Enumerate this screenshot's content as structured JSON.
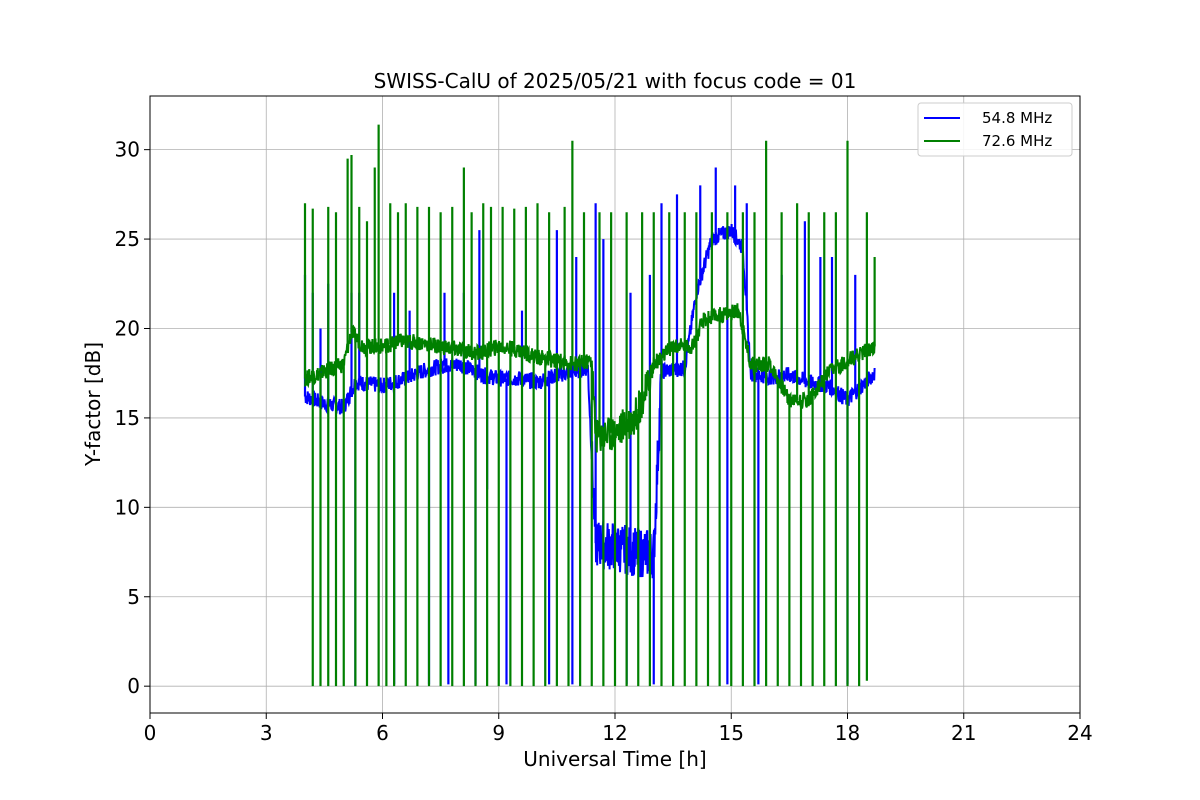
{
  "chart_data": {
    "type": "line",
    "title": "SWISS-CalU of 2025/05/21 with focus code = 01",
    "xlabel": "Universal Time [h]",
    "ylabel": "Y-factor [dB]",
    "xlim": [
      0,
      24
    ],
    "ylim": [
      -1.5,
      33
    ],
    "xticks": [
      0,
      3,
      6,
      9,
      12,
      15,
      18,
      21,
      24
    ],
    "yticks": [
      0,
      5,
      10,
      15,
      20,
      25,
      30
    ],
    "grid": true,
    "legend_position": "top-right",
    "colors": {
      "series_1": "#0000ff",
      "series_2": "#008000"
    },
    "series": [
      {
        "name": "54.8 MHz",
        "color": "#0000ff",
        "baseline": [
          [
            4.0,
            16.2
          ],
          [
            4.5,
            15.8
          ],
          [
            5.0,
            15.6
          ],
          [
            5.3,
            17.0
          ],
          [
            6.0,
            16.8
          ],
          [
            6.6,
            17.2
          ],
          [
            7.0,
            17.6
          ],
          [
            7.5,
            17.9
          ],
          [
            8.0,
            18.0
          ],
          [
            8.6,
            17.4
          ],
          [
            9.0,
            17.2
          ],
          [
            9.5,
            17.2
          ],
          [
            10.0,
            17.0
          ],
          [
            10.5,
            17.4
          ],
          [
            11.0,
            17.6
          ],
          [
            11.3,
            17.8
          ],
          [
            11.5,
            8.0
          ],
          [
            12.0,
            7.8
          ],
          [
            12.5,
            7.5
          ],
          [
            13.0,
            7.4
          ],
          [
            13.2,
            17.6
          ],
          [
            13.8,
            17.8
          ],
          [
            14.1,
            22.0
          ],
          [
            14.5,
            25.0
          ],
          [
            15.0,
            25.5
          ],
          [
            15.3,
            24.5
          ],
          [
            15.5,
            17.5
          ],
          [
            16.0,
            17.3
          ],
          [
            16.5,
            17.4
          ],
          [
            17.0,
            17.0
          ],
          [
            17.5,
            16.8
          ],
          [
            18.0,
            16.0
          ],
          [
            18.7,
            17.5
          ]
        ],
        "spike_peaks": [
          [
            4.0,
            23.0
          ],
          [
            4.2,
            22.0
          ],
          [
            4.4,
            20.0
          ],
          [
            4.6,
            22.5
          ],
          [
            5.2,
            22.0
          ],
          [
            5.4,
            22.0
          ],
          [
            6.3,
            22.0
          ],
          [
            6.7,
            21.0
          ],
          [
            7.6,
            22.0
          ],
          [
            8.1,
            22.0
          ],
          [
            8.5,
            25.5
          ],
          [
            9.6,
            21.0
          ],
          [
            10.5,
            25.5
          ],
          [
            11.0,
            24.0
          ],
          [
            11.5,
            27.0
          ],
          [
            11.7,
            25.0
          ],
          [
            12.4,
            22.0
          ],
          [
            12.9,
            23.0
          ],
          [
            13.2,
            27.0
          ],
          [
            13.6,
            27.5
          ],
          [
            14.2,
            28.0
          ],
          [
            14.6,
            29.0
          ],
          [
            15.1,
            28.0
          ],
          [
            15.4,
            27.0
          ],
          [
            16.3,
            23.0
          ],
          [
            16.9,
            26.0
          ],
          [
            17.3,
            24.0
          ],
          [
            17.6,
            24.0
          ],
          [
            18.2,
            23.0
          ]
        ],
        "dips": [
          [
            5.3,
            0.0
          ],
          [
            6.3,
            0.1
          ],
          [
            7.2,
            0.1
          ],
          [
            7.7,
            0.1
          ],
          [
            8.4,
            0.1
          ],
          [
            8.7,
            11.0
          ],
          [
            9.2,
            0.1
          ],
          [
            10.3,
            0.1
          ],
          [
            10.9,
            0.1
          ],
          [
            12.3,
            0.1
          ],
          [
            13.0,
            0.1
          ],
          [
            14.9,
            0.1
          ],
          [
            15.7,
            0.1
          ],
          [
            18.0,
            0.1
          ]
        ]
      },
      {
        "name": "72.6 MHz",
        "color": "#008000",
        "baseline": [
          [
            4.0,
            17.2
          ],
          [
            4.5,
            17.6
          ],
          [
            5.0,
            18.0
          ],
          [
            5.2,
            19.8
          ],
          [
            5.5,
            19.0
          ],
          [
            6.0,
            19.0
          ],
          [
            6.5,
            19.3
          ],
          [
            7.0,
            19.2
          ],
          [
            7.5,
            19.0
          ],
          [
            8.0,
            18.8
          ],
          [
            8.5,
            18.6
          ],
          [
            9.0,
            19.0
          ],
          [
            9.5,
            18.8
          ],
          [
            10.0,
            18.4
          ],
          [
            10.5,
            18.2
          ],
          [
            11.0,
            18.0
          ],
          [
            11.4,
            18.2
          ],
          [
            11.5,
            14.0
          ],
          [
            12.0,
            14.2
          ],
          [
            12.5,
            15.0
          ],
          [
            12.8,
            16.5
          ],
          [
            13.0,
            18.0
          ],
          [
            13.5,
            19.0
          ],
          [
            14.0,
            19.0
          ],
          [
            14.3,
            20.5
          ],
          [
            14.8,
            20.8
          ],
          [
            15.2,
            21.0
          ],
          [
            15.5,
            18.0
          ],
          [
            16.0,
            18.0
          ],
          [
            16.5,
            16.0
          ],
          [
            17.0,
            16.0
          ],
          [
            17.5,
            17.5
          ],
          [
            18.0,
            18.2
          ],
          [
            18.7,
            19.0
          ]
        ],
        "spike_peaks": [
          [
            4.0,
            27.0
          ],
          [
            4.2,
            26.7
          ],
          [
            4.6,
            26.8
          ],
          [
            4.8,
            26.5
          ],
          [
            5.1,
            29.5
          ],
          [
            5.2,
            29.7
          ],
          [
            5.4,
            26.8
          ],
          [
            5.6,
            26.0
          ],
          [
            5.8,
            29.0
          ],
          [
            5.9,
            31.4
          ],
          [
            6.2,
            27.0
          ],
          [
            6.4,
            26.5
          ],
          [
            6.6,
            27.0
          ],
          [
            6.9,
            26.8
          ],
          [
            7.2,
            26.8
          ],
          [
            7.5,
            26.5
          ],
          [
            7.8,
            26.8
          ],
          [
            8.1,
            29.0
          ],
          [
            8.3,
            26.5
          ],
          [
            8.6,
            27.0
          ],
          [
            8.8,
            26.8
          ],
          [
            9.1,
            26.8
          ],
          [
            9.4,
            26.7
          ],
          [
            9.7,
            26.8
          ],
          [
            10.0,
            27.0
          ],
          [
            10.3,
            26.5
          ],
          [
            10.7,
            26.8
          ],
          [
            10.9,
            30.5
          ],
          [
            11.2,
            26.5
          ],
          [
            11.6,
            26.5
          ],
          [
            11.9,
            26.5
          ],
          [
            12.3,
            26.5
          ],
          [
            12.7,
            26.5
          ],
          [
            13.0,
            26.5
          ],
          [
            13.4,
            26.5
          ],
          [
            13.8,
            26.5
          ],
          [
            14.1,
            26.5
          ],
          [
            14.5,
            26.5
          ],
          [
            14.9,
            26.5
          ],
          [
            15.3,
            26.5
          ],
          [
            15.6,
            26.5
          ],
          [
            15.9,
            30.5
          ],
          [
            16.3,
            26.5
          ],
          [
            16.7,
            27.0
          ],
          [
            17.0,
            26.5
          ],
          [
            17.4,
            26.5
          ],
          [
            17.7,
            26.5
          ],
          [
            18.0,
            30.5
          ],
          [
            18.5,
            26.5
          ],
          [
            18.7,
            24.0
          ]
        ],
        "dips": [
          [
            4.2,
            0.0
          ],
          [
            4.4,
            0.0
          ],
          [
            4.6,
            0.0
          ],
          [
            4.8,
            0.0
          ],
          [
            5.0,
            0.0
          ],
          [
            5.3,
            0.0
          ],
          [
            5.6,
            0.0
          ],
          [
            5.9,
            0.0
          ],
          [
            6.1,
            0.0
          ],
          [
            6.3,
            0.0
          ],
          [
            6.6,
            0.0
          ],
          [
            6.9,
            0.0
          ],
          [
            7.2,
            0.0
          ],
          [
            7.5,
            0.0
          ],
          [
            7.8,
            0.0
          ],
          [
            8.1,
            0.0
          ],
          [
            8.4,
            0.0
          ],
          [
            8.7,
            0.0
          ],
          [
            9.0,
            0.0
          ],
          [
            9.3,
            0.0
          ],
          [
            9.6,
            0.0
          ],
          [
            9.9,
            0.0
          ],
          [
            10.2,
            0.0
          ],
          [
            10.5,
            0.0
          ],
          [
            10.8,
            0.0
          ],
          [
            11.1,
            0.0
          ],
          [
            11.4,
            0.0
          ],
          [
            11.7,
            0.0
          ],
          [
            12.0,
            0.0
          ],
          [
            12.3,
            0.0
          ],
          [
            12.6,
            0.0
          ],
          [
            12.9,
            0.0
          ],
          [
            13.2,
            0.0
          ],
          [
            13.5,
            0.0
          ],
          [
            13.8,
            0.0
          ],
          [
            14.1,
            0.0
          ],
          [
            14.4,
            0.0
          ],
          [
            14.7,
            0.0
          ],
          [
            15.0,
            0.0
          ],
          [
            15.3,
            0.0
          ],
          [
            15.6,
            0.0
          ],
          [
            15.9,
            0.0
          ],
          [
            16.2,
            0.0
          ],
          [
            16.5,
            0.0
          ],
          [
            16.8,
            0.0
          ],
          [
            17.1,
            0.0
          ],
          [
            17.4,
            0.0
          ],
          [
            17.7,
            0.0
          ],
          [
            18.0,
            0.0
          ],
          [
            18.3,
            0.0
          ],
          [
            18.5,
            0.3
          ]
        ]
      }
    ]
  }
}
